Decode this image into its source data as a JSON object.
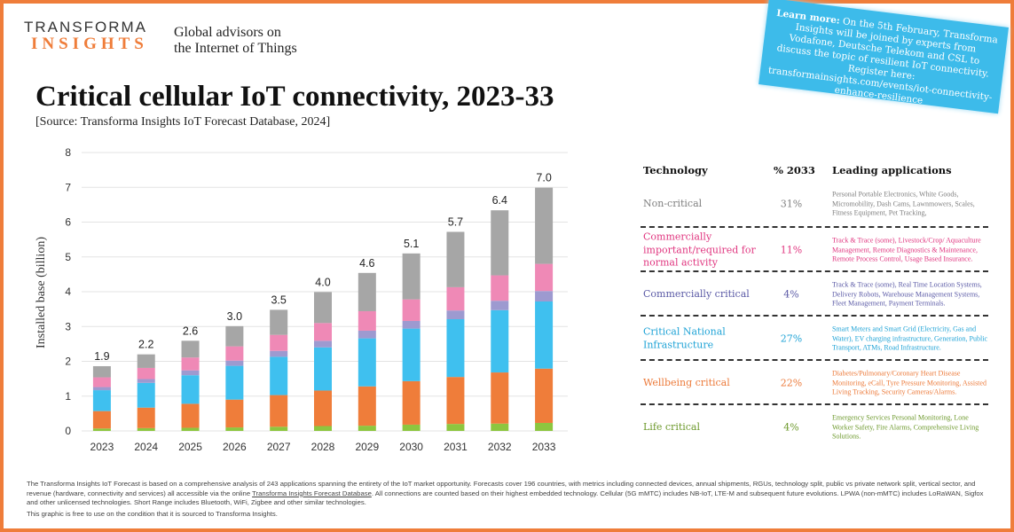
{
  "logo": {
    "top": "TRANSFORMA",
    "bottom": "INSIGHTS"
  },
  "tagline": [
    "Global advisors on",
    "the Internet of Things"
  ],
  "title": "Critical cellular IoT connectivity, 2023-33",
  "source": "[Source: Transforma Insights IoT Forecast Database, 2024]",
  "note": {
    "bold": "Learn more:",
    "text": " On the 5th February, Transforma Insights will be joined by experts from Vodafone, Deutsche Telekom and CSL to discuss the topic of resilient IoT connectivity. Register here: transformainsights.com/events/iot-connectivity-enhance-resilience",
    "color": "#3dbbea"
  },
  "chart_data": {
    "type": "bar",
    "stacked": true,
    "ylabel": "Installed base (billion)",
    "ylim": [
      0,
      8
    ],
    "yticks": [
      "0",
      "1",
      "2",
      "3",
      "4",
      "5",
      "6",
      "7",
      "8"
    ],
    "grid": true,
    "categories": [
      "2023",
      "2024",
      "2025",
      "2026",
      "2027",
      "2028",
      "2029",
      "2030",
      "2031",
      "2032",
      "2033"
    ],
    "totals_labels": [
      "1.9",
      "2.2",
      "2.6",
      "3.0",
      "3.5",
      "4.0",
      "4.6",
      "5.1",
      "5.7",
      "6.4",
      "7.0"
    ],
    "series": [
      {
        "name": "Life critical",
        "color": "#8dc63f",
        "values": [
          0.07,
          0.08,
          0.09,
          0.1,
          0.12,
          0.14,
          0.15,
          0.18,
          0.2,
          0.21,
          0.23
        ]
      },
      {
        "name": "Wellbeing critical",
        "color": "#ef7d3a",
        "values": [
          0.5,
          0.59,
          0.69,
          0.8,
          0.91,
          1.02,
          1.13,
          1.25,
          1.35,
          1.47,
          1.56
        ]
      },
      {
        "name": "Critical National Infrastructure",
        "color": "#3fc0ef",
        "values": [
          0.6,
          0.71,
          0.82,
          0.97,
          1.1,
          1.24,
          1.38,
          1.51,
          1.66,
          1.79,
          1.93
        ]
      },
      {
        "name": "Commercially critical",
        "color": "#9d9ad0",
        "values": [
          0.09,
          0.11,
          0.14,
          0.15,
          0.17,
          0.19,
          0.22,
          0.22,
          0.25,
          0.27,
          0.3
        ]
      },
      {
        "name": "Commercially important/required for normal activity",
        "color": "#ef89b6",
        "values": [
          0.28,
          0.32,
          0.37,
          0.41,
          0.46,
          0.51,
          0.56,
          0.62,
          0.67,
          0.73,
          0.78
        ]
      },
      {
        "name": "Non-critical",
        "color": "#a6a6a6",
        "values": [
          0.32,
          0.39,
          0.48,
          0.58,
          0.72,
          0.89,
          1.1,
          1.32,
          1.59,
          1.87,
          2.19
        ]
      }
    ]
  },
  "table": {
    "headers": [
      "Technology",
      "% 2033",
      "Leading applications"
    ],
    "rows": [
      {
        "tech": "Non-critical",
        "pct": "31%",
        "apps": "Personal Portable Electronics, White Goods, Micromobility, Dash Cams, Lawnmowers, Scales, Fitness Equipment, Pet Tracking,",
        "color": "#7f7f7f"
      },
      {
        "tech": "Commercially important/required for normal activity",
        "pct": "11%",
        "apps": "Track & Trace (some), Livestock/Crop/ Aquaculture Management, Remote Diagnostics & Maintenance, Remote Process Control, Usage Based Insurance.",
        "color": "#e0357f"
      },
      {
        "tech": "Commercially critical",
        "pct": "4%",
        "apps": "Track & Trace (some), Real Time Location Systems, Delivery Robots, Warehouse Management Systems, Fleet Management, Payment Terminals.",
        "color": "#5b5aa6"
      },
      {
        "tech": "Critical National Infrastructure",
        "pct": "27%",
        "apps": "Smart Meters and Smart Grid (Electricity, Gas and Water), EV charging infrastructure, Generation, Public Transport, ATMs, Road Infrastructure.",
        "color": "#1fa3d6"
      },
      {
        "tech": "Wellbeing critical",
        "pct": "22%",
        "apps": "Diabetes/Pulmonary/Coronary Heart Disease Monitoring, eCall, Tyre Pressure Monitoring, Assisted Living Tracking, Security Cameras/Alarms.",
        "color": "#ec7a3a"
      },
      {
        "tech": "Life critical",
        "pct": "4%",
        "apps": "Emergency Services Personal Monitoring, Lone Worker Safety, Fire Alarms, Comprehensive Living Solutions.",
        "color": "#6e9a2e"
      }
    ]
  },
  "footer": {
    "p1a": "The Transforma Insights IoT Forecast is based on a comprehensive analysis of 243 applications spanning the entirety of the IoT market opportunity. Forecasts cover 196 countries, with metrics including connected devices, annual shipments, RGUs, technology split, public vs private network split, vertical sector, and revenue (hardware, connectivity and services) all accessible via the online ",
    "link": "Transforma Insights Forecast Database",
    "p1b": ". All connections are counted based on their highest embedded technology. Cellular (5G mMTC) includes NB-IoT, LTE-M and subsequent future evolutions. LPWA (non-mMTC) includes LoRaWAN, Sigfox and other unlicensed technologies. Short Range includes Bluetooth, WiFi, Zigbee and other similar technologies.",
    "p2": "This graphic is free to use on the condition that it is sourced to Transforma Insights."
  }
}
